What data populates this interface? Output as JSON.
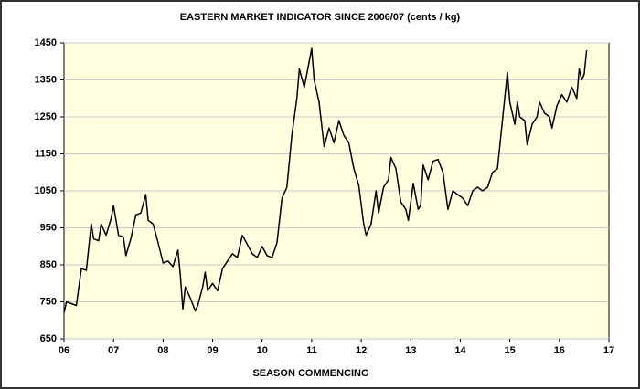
{
  "chart_data": {
    "type": "line",
    "title": "EASTERN MARKET INDICATOR SINCE 2006/07 (cents / kg)",
    "x_label": "SEASON COMMENCING",
    "xlim": [
      2006,
      2017
    ],
    "xticks": [
      {
        "value": 2006,
        "label": "06"
      },
      {
        "value": 2007,
        "label": "07"
      },
      {
        "value": 2008,
        "label": "08"
      },
      {
        "value": 2009,
        "label": "09"
      },
      {
        "value": 2010,
        "label": "10"
      },
      {
        "value": 2011,
        "label": "11"
      },
      {
        "value": 2012,
        "label": "12"
      },
      {
        "value": 2013,
        "label": "13"
      },
      {
        "value": 2014,
        "label": "14"
      },
      {
        "value": 2015,
        "label": "15"
      },
      {
        "value": 2016,
        "label": "16"
      },
      {
        "value": 2017,
        "label": "17"
      }
    ],
    "ylim": [
      650,
      1450
    ],
    "yticks": [
      650,
      750,
      850,
      950,
      1050,
      1150,
      1250,
      1350,
      1450
    ],
    "grid": true,
    "x": [
      2006.0,
      2006.05,
      2006.15,
      2006.25,
      2006.35,
      2006.45,
      2006.55,
      2006.6,
      2006.7,
      2006.75,
      2006.85,
      2006.95,
      2007.0,
      2007.1,
      2007.2,
      2007.25,
      2007.35,
      2007.45,
      2007.55,
      2007.65,
      2007.7,
      2007.8,
      2007.9,
      2008.0,
      2008.1,
      2008.2,
      2008.3,
      2008.35,
      2008.4,
      2008.45,
      2008.55,
      2008.65,
      2008.7,
      2008.8,
      2008.85,
      2008.9,
      2009.0,
      2009.1,
      2009.2,
      2009.3,
      2009.4,
      2009.5,
      2009.6,
      2009.7,
      2009.8,
      2009.9,
      2010.0,
      2010.1,
      2010.2,
      2010.3,
      2010.4,
      2010.5,
      2010.6,
      2010.7,
      2010.75,
      2010.85,
      2010.95,
      2011.0,
      2011.05,
      2011.15,
      2011.25,
      2011.35,
      2011.45,
      2011.55,
      2011.65,
      2011.75,
      2011.85,
      2011.95,
      2012.05,
      2012.1,
      2012.2,
      2012.3,
      2012.35,
      2012.45,
      2012.55,
      2012.6,
      2012.7,
      2012.8,
      2012.9,
      2012.95,
      2013.05,
      2013.15,
      2013.2,
      2013.25,
      2013.35,
      2013.45,
      2013.55,
      2013.65,
      2013.75,
      2013.85,
      2013.95,
      2014.05,
      2014.15,
      2014.25,
      2014.35,
      2014.45,
      2014.55,
      2014.65,
      2014.75,
      2014.85,
      2014.95,
      2015.0,
      2015.1,
      2015.15,
      2015.2,
      2015.3,
      2015.35,
      2015.45,
      2015.55,
      2015.6,
      2015.7,
      2015.8,
      2015.85,
      2015.95,
      2016.05,
      2016.15,
      2016.25,
      2016.35,
      2016.4,
      2016.45,
      2016.5,
      2016.55
    ],
    "series": [
      {
        "name": "Eastern Market Indicator",
        "color": "#000000",
        "values": [
          720,
          750,
          745,
          740,
          840,
          835,
          960,
          920,
          915,
          960,
          930,
          975,
          1010,
          930,
          925,
          875,
          920,
          985,
          990,
          1040,
          970,
          960,
          910,
          855,
          860,
          845,
          890,
          820,
          730,
          790,
          760,
          725,
          740,
          790,
          830,
          780,
          800,
          780,
          840,
          860,
          880,
          870,
          930,
          905,
          880,
          870,
          900,
          875,
          870,
          910,
          1030,
          1060,
          1200,
          1300,
          1380,
          1330,
          1400,
          1435,
          1350,
          1290,
          1170,
          1220,
          1180,
          1240,
          1200,
          1180,
          1110,
          1065,
          960,
          930,
          960,
          1050,
          990,
          1060,
          1080,
          1140,
          1110,
          1020,
          1000,
          970,
          1070,
          1000,
          1010,
          1120,
          1080,
          1130,
          1135,
          1100,
          1000,
          1050,
          1040,
          1030,
          1010,
          1050,
          1060,
          1050,
          1060,
          1100,
          1110,
          1240,
          1370,
          1290,
          1230,
          1290,
          1250,
          1240,
          1175,
          1230,
          1250,
          1290,
          1260,
          1250,
          1220,
          1280,
          1310,
          1290,
          1330,
          1300,
          1380,
          1350,
          1365,
          1430
        ]
      }
    ]
  }
}
